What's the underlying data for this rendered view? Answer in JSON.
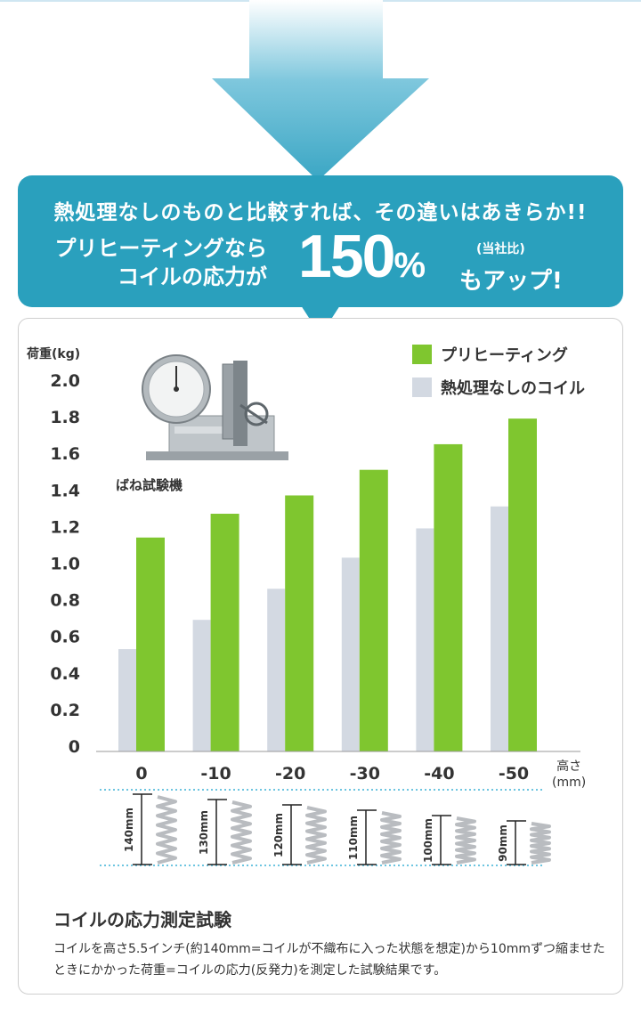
{
  "banner": {
    "headline": "熱処理なしのものと比較すれば、その違いはあきらか!!",
    "line1": "プリヒーティングなら",
    "line2": "コイルの応力が",
    "percent": "150",
    "percent_sign": "%",
    "note": "(当社比)",
    "up_text": "もアップ!"
  },
  "photo_label": "ばね試験機",
  "height_unit": {
    "line1": "高さ",
    "line2": "(mm)"
  },
  "colors": {
    "banner": "#2aa0bd",
    "arrow": "#4fb3cf",
    "green": "#7fc62f",
    "gray": "#d3d9e2",
    "dotted": "#3db2d6"
  },
  "chart_data": {
    "type": "bar",
    "ylabel": "荷重(kg)",
    "yticks": [
      "2.0",
      "1.8",
      "1.6",
      "1.4",
      "1.2",
      "1.0",
      "0.8",
      "0.6",
      "0.4",
      "0.2",
      "0"
    ],
    "ylim": [
      0,
      2.0
    ],
    "categories": [
      "0",
      "-10",
      "-20",
      "-30",
      "-40",
      "-50"
    ],
    "series": [
      {
        "name": "熱処理なしのコイル",
        "values": [
          0.53,
          0.69,
          0.86,
          1.03,
          1.19,
          1.31
        ]
      },
      {
        "name": "プリヒーティング",
        "values": [
          1.14,
          1.27,
          1.37,
          1.51,
          1.65,
          1.79
        ]
      }
    ],
    "legend_position": "top-right",
    "grid": false
  },
  "coils": [
    "140mm",
    "130mm",
    "120mm",
    "110mm",
    "100mm",
    "90mm"
  ],
  "footer": {
    "title": "コイルの応力測定試験",
    "text": "コイルを高さ5.5インチ(約140mm=コイルが不織布に入った状態を想定)から10mmずつ縮ませたときにかかった荷重=コイルの応力(反発力)を測定した試験結果です。"
  }
}
